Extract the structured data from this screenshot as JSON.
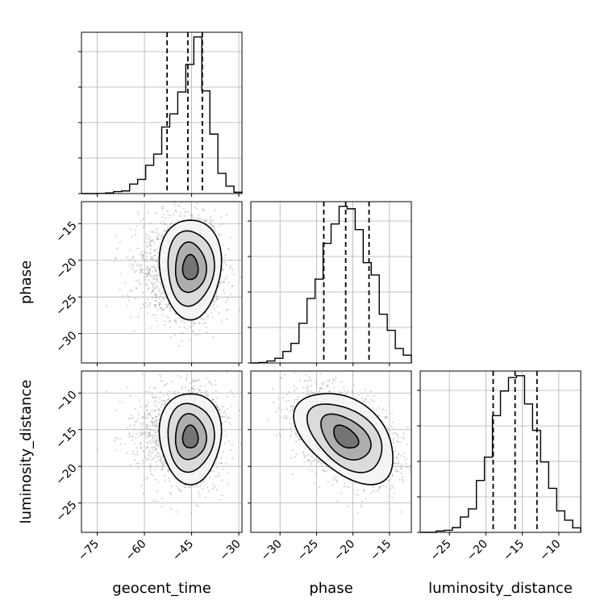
{
  "chart_data": {
    "type": "corner",
    "parameters": [
      {
        "name": "geocent_time",
        "xlabel": "geocent_time",
        "ylabel": "",
        "range": [
          -80,
          -29
        ],
        "ticks": [
          -75,
          -60,
          -45,
          -30
        ],
        "tick_labels": [
          "−75",
          "−60",
          "−45",
          "−30"
        ],
        "mean": -45.4,
        "std": 4.9,
        "skew": -0.9,
        "quantiles": [
          -52.8,
          -46.2,
          -41.6
        ]
      },
      {
        "name": "phase",
        "xlabel": "phase",
        "ylabel": "phase",
        "range": [
          -34,
          -12
        ],
        "ticks": [
          -30,
          -25,
          -20,
          -15
        ],
        "tick_labels": [
          "−30",
          "−25",
          "−20",
          "−15"
        ],
        "mean": -21.0,
        "std": 3.4,
        "skew": 0,
        "quantiles": [
          -24.0,
          -21.0,
          -17.8
        ]
      },
      {
        "name": "luminosity_distance",
        "xlabel": "luminosity_distance",
        "ylabel": "luminosity_distance",
        "range": [
          -29,
          -7
        ],
        "ticks": [
          -25,
          -20,
          -15,
          -10
        ],
        "tick_labels": [
          "−25",
          "−20",
          "−15",
          "−10"
        ],
        "mean": -16.0,
        "std": 3.1,
        "skew": 0,
        "quantiles": [
          -19.0,
          -16.0,
          -13.0
        ]
      }
    ],
    "y_ticks": {
      "phase": {
        "ticks": [
          -30,
          -25,
          -20,
          -15
        ],
        "tick_labels": [
          "−30",
          "−25",
          "−20",
          "−15"
        ]
      },
      "luminosity_distance": {
        "ticks": [
          -25,
          -20,
          -15,
          -10
        ],
        "tick_labels": [
          "−25",
          "−20",
          "−15",
          "−10"
        ]
      }
    },
    "correlations": {
      "geocent_time|phase": 0.0,
      "geocent_time|luminosity_distance": 0.0,
      "phase|luminosity_distance": -0.45
    },
    "contour_levels_sigma": [
      0.5,
      1.0,
      1.5,
      2.0
    ],
    "grid": true,
    "colors": {
      "line": "#000000",
      "grid": "#b0b0b0",
      "points": "#7f7f7f"
    }
  }
}
